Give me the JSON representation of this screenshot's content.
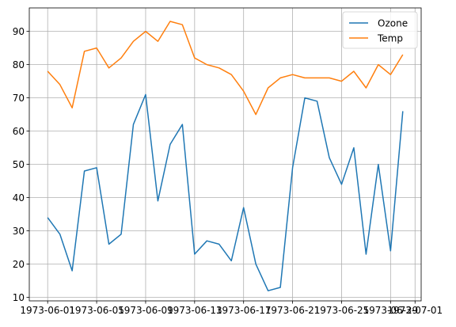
{
  "chart_data": {
    "type": "line",
    "title": "",
    "xlabel": "",
    "ylabel": "",
    "x": [
      "1973-06-01",
      "1973-06-02",
      "1973-06-03",
      "1973-06-04",
      "1973-06-05",
      "1973-06-06",
      "1973-06-07",
      "1973-06-08",
      "1973-06-09",
      "1973-06-10",
      "1973-06-11",
      "1973-06-12",
      "1973-06-13",
      "1973-06-14",
      "1973-06-15",
      "1973-06-16",
      "1973-06-17",
      "1973-06-18",
      "1973-06-19",
      "1973-06-20",
      "1973-06-21",
      "1973-06-22",
      "1973-06-23",
      "1973-06-24",
      "1973-06-25",
      "1973-06-26",
      "1973-06-27",
      "1973-06-28",
      "1973-06-29",
      "1973-06-30"
    ],
    "series": [
      {
        "name": "Ozone",
        "color": "#1f77b4",
        "values": [
          34,
          29,
          18,
          48,
          49,
          26,
          29,
          62,
          71,
          39,
          56,
          62,
          23,
          27,
          26,
          21,
          37,
          20,
          12,
          13,
          49,
          70,
          69,
          52,
          44,
          55,
          23,
          50,
          24,
          66
        ]
      },
      {
        "name": "Temp",
        "color": "#ff7f0e",
        "values": [
          78,
          74,
          67,
          84,
          85,
          79,
          82,
          87,
          90,
          87,
          93,
          92,
          82,
          80,
          79,
          77,
          72,
          65,
          73,
          76,
          77,
          76,
          76,
          76,
          75,
          78,
          73,
          80,
          77,
          83
        ]
      }
    ],
    "xlim": [
      "1973-05-30T12:00",
      "1973-07-01T12:00"
    ],
    "ylim": [
      8.95,
      97.05
    ],
    "x_ticks": [
      "1973-06-01",
      "1973-06-05",
      "1973-06-09",
      "1973-06-13",
      "1973-06-17",
      "1973-06-21",
      "1973-06-25",
      "1973-06-29",
      "1973-07-01"
    ],
    "y_ticks": [
      10,
      20,
      30,
      40,
      50,
      60,
      70,
      80,
      90
    ],
    "grid": true,
    "legend": "upper right"
  }
}
